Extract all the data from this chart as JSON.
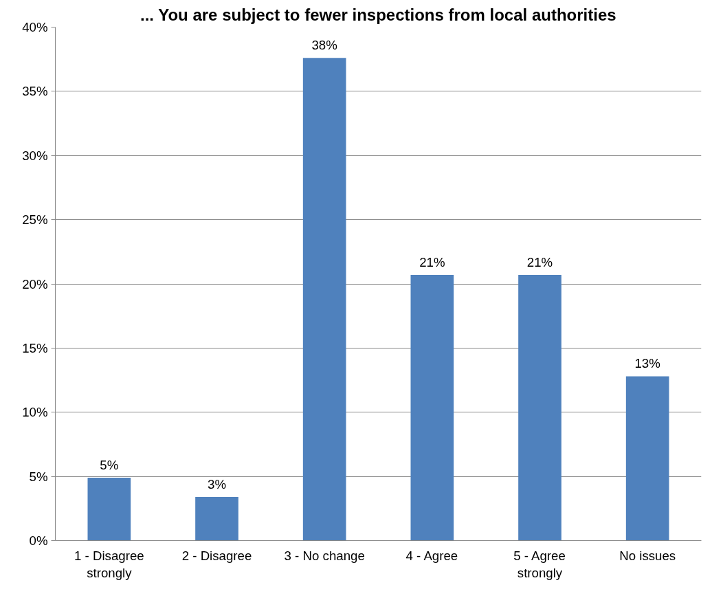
{
  "chart_data": {
    "type": "bar",
    "title": "... You are subject to fewer inspections from local authorities",
    "categories": [
      "1 - Disagree strongly",
      "2 - Disagree",
      "3 - No change",
      "4 - Agree",
      "5 - Agree strongly",
      "No issues"
    ],
    "values": [
      4.9,
      3.4,
      37.6,
      20.7,
      20.7,
      12.8
    ],
    "value_labels": [
      "5%",
      "3%",
      "38%",
      "21%",
      "21%",
      "13%"
    ],
    "color": "#4f81bd",
    "ylim": [
      0,
      40
    ],
    "yticks": [
      {
        "value": 0,
        "label": "0%"
      },
      {
        "value": 5,
        "label": "5%"
      },
      {
        "value": 10,
        "label": "10%"
      },
      {
        "value": 15,
        "label": "15%"
      },
      {
        "value": 20,
        "label": "20%"
      },
      {
        "value": 25,
        "label": "25%"
      },
      {
        "value": 30,
        "label": "30%"
      },
      {
        "value": 35,
        "label": "35%"
      },
      {
        "value": 40,
        "label": "40%"
      }
    ],
    "grid": "y"
  }
}
